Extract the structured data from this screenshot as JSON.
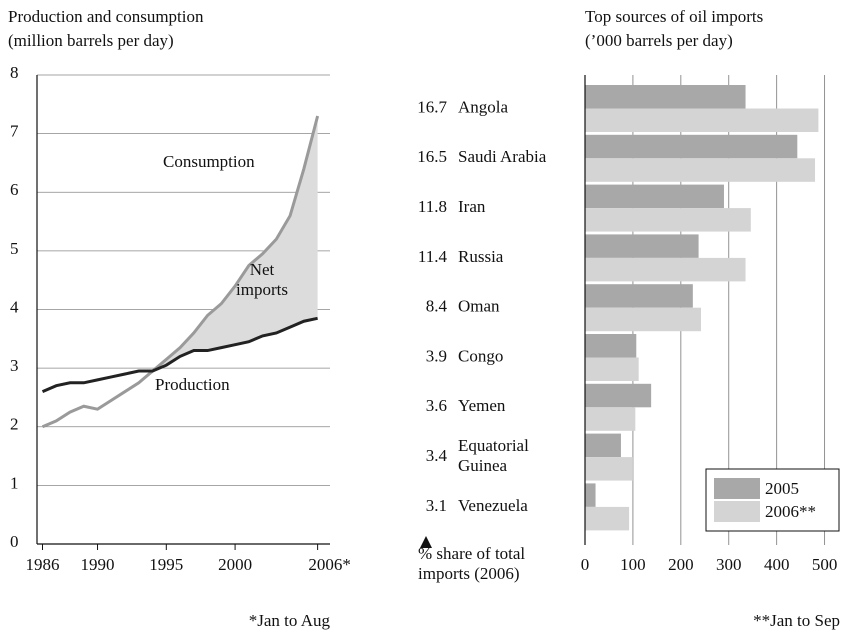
{
  "chart_data": [
    {
      "type": "line",
      "title": "Production and consumption",
      "subtitle": "(million barrels per day)",
      "x": [
        1986,
        1987,
        1988,
        1989,
        1990,
        1991,
        1992,
        1993,
        1994,
        1995,
        1996,
        1997,
        1998,
        1999,
        2000,
        2001,
        2002,
        2003,
        2004,
        2005,
        2006
      ],
      "series": [
        {
          "name": "Consumption",
          "color": "#9a9a9a",
          "values": [
            2.0,
            2.1,
            2.25,
            2.35,
            2.3,
            2.45,
            2.6,
            2.75,
            2.95,
            3.15,
            3.35,
            3.6,
            3.9,
            4.1,
            4.4,
            4.75,
            4.95,
            5.2,
            5.6,
            6.4,
            7.3
          ]
        },
        {
          "name": "Production",
          "color": "#222222",
          "values": [
            2.6,
            2.7,
            2.75,
            2.75,
            2.8,
            2.85,
            2.9,
            2.95,
            2.95,
            3.05,
            3.2,
            3.3,
            3.3,
            3.35,
            3.4,
            3.45,
            3.55,
            3.6,
            3.7,
            3.8,
            3.85
          ]
        }
      ],
      "annotations": [
        "Net\nimports"
      ],
      "area_color": "#dcdcdc",
      "xlim": [
        1985.6,
        2006.9
      ],
      "xticks": [
        1986,
        1990,
        1995,
        2000,
        {
          "value": 2006,
          "label": "2006*"
        }
      ],
      "ylim": [
        0,
        8
      ],
      "yticks": [
        0,
        1,
        2,
        3,
        4,
        5,
        6,
        7,
        8
      ],
      "grid": true,
      "footnote": "*Jan to Aug"
    },
    {
      "type": "barh",
      "title": "Top sources of oil imports",
      "subtitle": "(’000 barrels per day)",
      "categories": [
        "Angola",
        "Saudi Arabia",
        "Iran",
        "Russia",
        "Oman",
        "Congo",
        "Yemen",
        "Equatorial\nGuinea",
        "Venezuela"
      ],
      "shares": [
        16.7,
        16.5,
        11.8,
        11.4,
        8.4,
        3.9,
        3.6,
        3.4,
        3.1
      ],
      "shares_label": "% share of total\nimports (2006)",
      "series": [
        {
          "name": "2005",
          "color": "#a8a8a8",
          "values": [
            335,
            443,
            290,
            237,
            225,
            107,
            138,
            75,
            22
          ]
        },
        {
          "name": "2006**",
          "color": "#d4d4d4",
          "values": [
            487,
            480,
            346,
            335,
            242,
            112,
            105,
            100,
            92
          ]
        }
      ],
      "xlim": [
        0,
        530
      ],
      "xticks": [
        0,
        100,
        200,
        300,
        400,
        500
      ],
      "grid": true,
      "legend": "lower right",
      "footnote": "**Jan to Sep"
    }
  ]
}
